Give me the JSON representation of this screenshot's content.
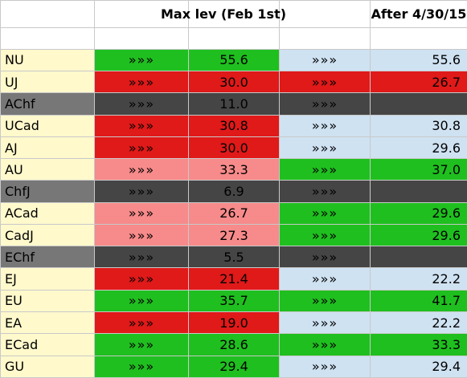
{
  "header": {
    "col_max_lev": "Max lev (Feb 1st)",
    "col_after": "After 4/30/15"
  },
  "arrow_glyph": "»»»",
  "colors": {
    "label_bg": "#fff9cc",
    "label_gray": "#777777",
    "green": "#1fbf1f",
    "red": "#e01919",
    "pink": "#f78a8a",
    "dark": "#454545",
    "light_blue": "#cfe2f2"
  },
  "rows": [
    {
      "pair": "NU",
      "left_color": "green",
      "max_lev": "55.6",
      "right_color": "lblue",
      "after": "55.6"
    },
    {
      "pair": "UJ",
      "left_color": "red",
      "max_lev": "30.0",
      "right_color": "red",
      "after": "26.7"
    },
    {
      "pair": "AChf",
      "left_color": "dark",
      "max_lev": "11.0",
      "right_color": "dark",
      "after": ""
    },
    {
      "pair": "UCad",
      "left_color": "red",
      "max_lev": "30.8",
      "right_color": "lblue",
      "after": "30.8"
    },
    {
      "pair": "AJ",
      "left_color": "red",
      "max_lev": "30.0",
      "right_color": "lblue",
      "after": "29.6"
    },
    {
      "pair": "AU",
      "left_color": "pink",
      "max_lev": "33.3",
      "right_color": "green",
      "after": "37.0"
    },
    {
      "pair": "ChfJ",
      "left_color": "dark",
      "max_lev": "6.9",
      "right_color": "dark",
      "after": ""
    },
    {
      "pair": "ACad",
      "left_color": "pink",
      "max_lev": "26.7",
      "right_color": "green",
      "after": "29.6"
    },
    {
      "pair": "CadJ",
      "left_color": "pink",
      "max_lev": "27.3",
      "right_color": "green",
      "after": "29.6"
    },
    {
      "pair": "EChf",
      "left_color": "dark",
      "max_lev": "5.5",
      "right_color": "dark",
      "after": ""
    },
    {
      "pair": "EJ",
      "left_color": "red",
      "max_lev": "21.4",
      "right_color": "lblue",
      "after": "22.2"
    },
    {
      "pair": "EU",
      "left_color": "green",
      "max_lev": "35.7",
      "right_color": "green",
      "after": "41.7"
    },
    {
      "pair": "EA",
      "left_color": "red",
      "max_lev": "19.0",
      "right_color": "lblue",
      "after": "22.2"
    },
    {
      "pair": "ECad",
      "left_color": "green",
      "max_lev": "28.6",
      "right_color": "green",
      "after": "33.3"
    },
    {
      "pair": "GU",
      "left_color": "green",
      "max_lev": "29.4",
      "right_color": "lblue",
      "after": "29.4"
    }
  ]
}
